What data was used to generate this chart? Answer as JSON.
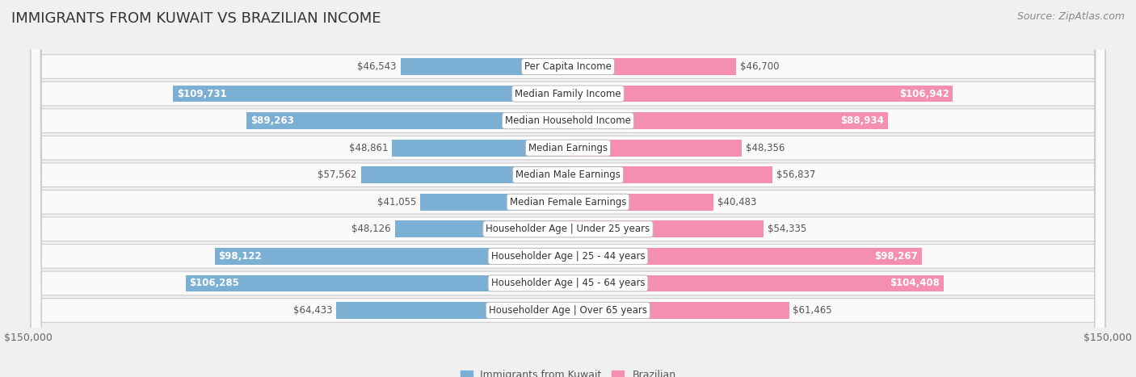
{
  "title": "IMMIGRANTS FROM KUWAIT VS BRAZILIAN INCOME",
  "source": "Source: ZipAtlas.com",
  "categories": [
    "Per Capita Income",
    "Median Family Income",
    "Median Household Income",
    "Median Earnings",
    "Median Male Earnings",
    "Median Female Earnings",
    "Householder Age | Under 25 years",
    "Householder Age | 25 - 44 years",
    "Householder Age | 45 - 64 years",
    "Householder Age | Over 65 years"
  ],
  "kuwait_values": [
    46543,
    109731,
    89263,
    48861,
    57562,
    41055,
    48126,
    98122,
    106285,
    64433
  ],
  "brazil_values": [
    46700,
    106942,
    88934,
    48356,
    56837,
    40483,
    54335,
    98267,
    104408,
    61465
  ],
  "kuwait_color": "#7bafd4",
  "brazil_color": "#f48fb1",
  "kuwait_label": "Immigrants from Kuwait",
  "brazil_label": "Brazilian",
  "x_max": 150000,
  "fig_bg": "#f0f0f0",
  "row_bg_light": "#fafafa",
  "row_bg_dark": "#e8e8e8",
  "row_border": "#cccccc",
  "title_fontsize": 13,
  "source_fontsize": 9,
  "bar_label_fontsize": 8.5,
  "category_fontsize": 8.5,
  "axis_label_fontsize": 9,
  "inside_label_threshold": 75000
}
